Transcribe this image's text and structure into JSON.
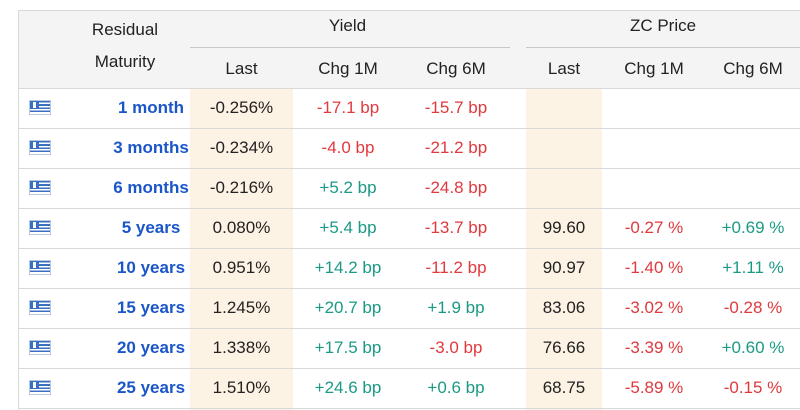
{
  "header": {
    "residual_maturity_line1": "Residual",
    "residual_maturity_line2": "Maturity",
    "yield_group": "Yield",
    "zc_group": "ZC Price",
    "col_last": "Last",
    "col_chg1m": "Chg 1M",
    "col_chg6m": "Chg 6M"
  },
  "icons": {
    "flag": "greece-flag-icon"
  },
  "colors": {
    "maturity": "#1a56c8",
    "negative": "#e0393e",
    "positive": "#1a9a86",
    "highlight": "#fdf3e4"
  },
  "rows": [
    {
      "maturity": "1 month",
      "yield_last": "-0.256%",
      "yield_chg1m": "-17.1 bp",
      "yield_chg6m": "-15.7 bp",
      "zc_last": "",
      "zc_chg1m": "",
      "zc_chg6m": ""
    },
    {
      "maturity": "3 months",
      "yield_last": "-0.234%",
      "yield_chg1m": "-4.0 bp",
      "yield_chg6m": "-21.2 bp",
      "zc_last": "",
      "zc_chg1m": "",
      "zc_chg6m": ""
    },
    {
      "maturity": "6 months",
      "yield_last": "-0.216%",
      "yield_chg1m": "+5.2 bp",
      "yield_chg6m": "-24.8 bp",
      "zc_last": "",
      "zc_chg1m": "",
      "zc_chg6m": ""
    },
    {
      "maturity": "5 years",
      "yield_last": "0.080%",
      "yield_chg1m": "+5.4 bp",
      "yield_chg6m": "-13.7 bp",
      "zc_last": "99.60",
      "zc_chg1m": "-0.27 %",
      "zc_chg6m": "+0.69 %"
    },
    {
      "maturity": "10 years",
      "yield_last": "0.951%",
      "yield_chg1m": "+14.2 bp",
      "yield_chg6m": "-11.2 bp",
      "zc_last": "90.97",
      "zc_chg1m": "-1.40 %",
      "zc_chg6m": "+1.11 %"
    },
    {
      "maturity": "15 years",
      "yield_last": "1.245%",
      "yield_chg1m": "+20.7 bp",
      "yield_chg6m": "+1.9 bp",
      "zc_last": "83.06",
      "zc_chg1m": "-3.02 %",
      "zc_chg6m": "-0.28 %"
    },
    {
      "maturity": "20 years",
      "yield_last": "1.338%",
      "yield_chg1m": "+17.5 bp",
      "yield_chg6m": "-3.0 bp",
      "zc_last": "76.66",
      "zc_chg1m": "-3.39 %",
      "zc_chg6m": "+0.60 %"
    },
    {
      "maturity": "25 years",
      "yield_last": "1.510%",
      "yield_chg1m": "+24.6 bp",
      "yield_chg6m": "+0.6 bp",
      "zc_last": "68.75",
      "zc_chg1m": "-5.89 %",
      "zc_chg6m": "-0.15 %"
    }
  ]
}
